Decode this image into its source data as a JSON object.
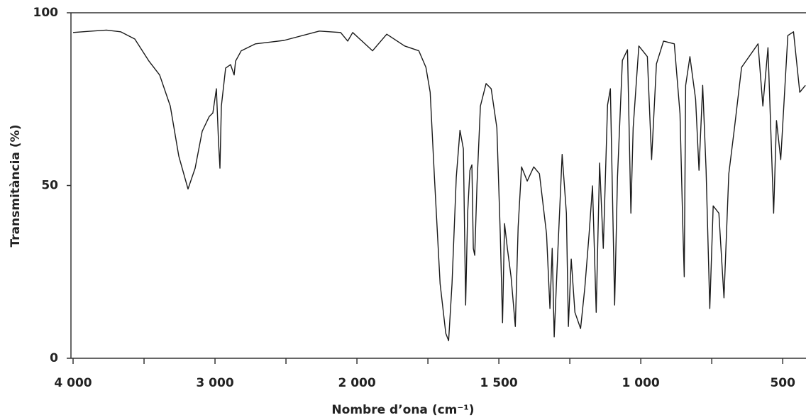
{
  "chart_data": {
    "type": "line",
    "xlabel": "Nombre d’ona (cm⁻¹)",
    "ylabel": "Transmitància (%)",
    "color": "#1a1a1a",
    "xlim": [
      4015,
      418
    ],
    "x_scale_break": 2000,
    "x_scale_factor_below_break": 2,
    "xticks": [
      {
        "value": 4000,
        "label": "4 000"
      },
      {
        "value": 3000,
        "label": "3 000"
      },
      {
        "value": 2000,
        "label": "2 000"
      },
      {
        "value": 1500,
        "label": "1 500"
      },
      {
        "value": 1000,
        "label": "1 000"
      },
      500
    ],
    "xminor_ticks": [
      3500,
      2500,
      1750,
      1250,
      750
    ],
    "ylim": [
      0,
      100
    ],
    "yticks": [
      0,
      50,
      100
    ],
    "x": [
      4000,
      3865,
      3765,
      3665,
      3565,
      3465,
      3390,
      3315,
      3255,
      3190,
      3140,
      3090,
      3040,
      3015,
      2990,
      2975,
      2965,
      2955,
      2925,
      2890,
      2865,
      2855,
      2815,
      2715,
      2515,
      2265,
      2115,
      2065,
      2030,
      1945,
      1895,
      1832,
      1782,
      1757,
      1742,
      1727,
      1707,
      1687,
      1677,
      1665,
      1650,
      1637,
      1625,
      1617,
      1610,
      1602,
      1595,
      1590,
      1585,
      1577,
      1565,
      1545,
      1527,
      1507,
      1495,
      1487,
      1480,
      1470,
      1457,
      1442,
      1432,
      1420,
      1400,
      1377,
      1357,
      1332,
      1320,
      1312,
      1305,
      1295,
      1277,
      1262,
      1255,
      1245,
      1232,
      1212,
      1197,
      1182,
      1170,
      1157,
      1145,
      1132,
      1117,
      1107,
      1092,
      1082,
      1065,
      1047,
      1035,
      1027,
      1007,
      977,
      962,
      945,
      920,
      882,
      862,
      852,
      847,
      842,
      827,
      807,
      795,
      782,
      770,
      757,
      745,
      725,
      707,
      690,
      670,
      645,
      587,
      570,
      552,
      532,
      522,
      507,
      482,
      462,
      440,
      420
    ],
    "values": [
      94.3,
      94.7,
      95,
      94.5,
      92.4,
      86,
      82,
      73,
      58.5,
      49,
      55,
      65.7,
      70,
      71,
      78,
      62.6,
      55,
      73,
      84,
      85,
      82,
      86,
      89,
      91,
      92,
      94.7,
      94.3,
      91.8,
      94.3,
      89,
      93.8,
      90.4,
      89,
      84.2,
      77,
      52.4,
      21.6,
      7.2,
      5.1,
      21.6,
      52.4,
      66,
      60.6,
      15.4,
      42,
      54.4,
      56,
      31.8,
      29.8,
      50.3,
      73,
      79.5,
      78,
      66.7,
      36,
      10.3,
      39,
      31.8,
      23.6,
      9.2,
      38,
      55.4,
      51.3,
      55.4,
      53.4,
      36,
      14.4,
      31.8,
      6.2,
      25.7,
      59,
      42,
      9.2,
      28.7,
      13.3,
      8.6,
      20.5,
      36,
      49.9,
      13.3,
      56.5,
      31.8,
      73.3,
      78,
      15.4,
      52.4,
      86.2,
      89.3,
      42,
      66.7,
      90.4,
      87.3,
      57.5,
      85.2,
      91.8,
      91,
      70.8,
      38,
      23.6,
      79,
      87.3,
      75,
      54.4,
      79,
      54.4,
      14.4,
      44.1,
      42,
      17.5,
      53.4,
      66.7,
      84.2,
      91,
      73,
      89.9,
      42,
      68.8,
      57.5,
      93.4,
      94.5,
      77,
      79
    ]
  }
}
